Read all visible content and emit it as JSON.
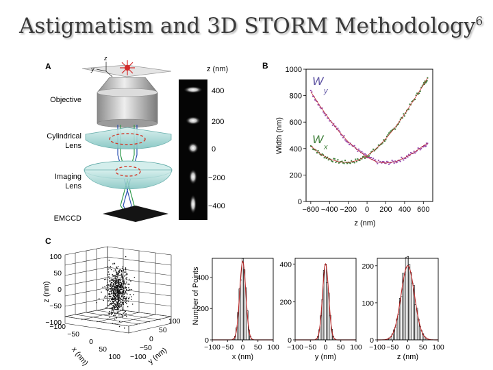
{
  "slide": {
    "title": "Astigmatism and 3D STORM Methodology",
    "title_sup": "6"
  },
  "panelA": {
    "label": "A",
    "axis_z": "z",
    "axis_y": "y",
    "axis_x": "x",
    "labels": [
      "Objective",
      "Cylindrical",
      "Lens",
      "Imaging",
      "Lens",
      "EMCCD"
    ],
    "z_header": "z (nm)",
    "z_ticks": [
      "400",
      "200",
      "0",
      "−200",
      "−400"
    ]
  },
  "panelC_label": "C",
  "chart_data": [
    {
      "type": "scatter",
      "panel": "B",
      "xlabel": "z (nm)",
      "ylabel": "Width (nm)",
      "xlim": [
        -650,
        700
      ],
      "ylim": [
        0,
        1000
      ],
      "xticks": [
        "−600",
        "−400",
        "−200",
        "0",
        "200",
        "400",
        "600"
      ],
      "yticks": [
        "0",
        "200",
        "400",
        "600",
        "800",
        "1000"
      ],
      "series": [
        {
          "name": "Wy",
          "color": "#3f7f3a",
          "z": [
            -600,
            -500,
            -400,
            -300,
            -200,
            -100,
            0,
            100,
            200,
            300,
            400,
            500,
            600,
            650
          ],
          "width": [
            420,
            360,
            320,
            300,
            295,
            310,
            345,
            400,
            475,
            560,
            660,
            770,
            880,
            940
          ]
        },
        {
          "name": "Wx",
          "color": "#9a4fb0",
          "z": [
            -600,
            -500,
            -400,
            -300,
            -200,
            -100,
            0,
            100,
            200,
            300,
            400,
            500,
            600,
            650
          ],
          "width": [
            830,
            720,
            620,
            530,
            450,
            390,
            335,
            300,
            290,
            300,
            330,
            370,
            420,
            440
          ]
        }
      ],
      "legend": [
        "W",
        "y",
        "W",
        "x"
      ]
    },
    {
      "type": "scatter3d",
      "panel": "C",
      "xlabel": "x (nm)",
      "ylabel": "y (nm)",
      "zlabel": "z (nm)",
      "zticks": [
        "100",
        "50",
        "0",
        "−50",
        "−100"
      ],
      "xticks": [
        "−100",
        "−50",
        "0",
        "50",
        "100"
      ],
      "yticks": [
        "−100",
        "−50",
        "0",
        "50",
        "100"
      ]
    },
    {
      "type": "bar",
      "panel": "C-x",
      "xlabel": "x (nm)",
      "ylabel": "Number of Points",
      "xlim": [
        -100,
        100
      ],
      "ylim": [
        0,
        520
      ],
      "xticks": [
        "−100",
        "−50",
        "0",
        "50",
        "100"
      ],
      "yticks": [
        "0",
        "200",
        "400"
      ],
      "sigma": 10,
      "peak": 500
    },
    {
      "type": "bar",
      "panel": "C-y",
      "xlabel": "y (nm)",
      "xlim": [
        -100,
        100
      ],
      "ylim": [
        0,
        430
      ],
      "xticks": [
        "−100",
        "−50",
        "0",
        "50",
        "100"
      ],
      "yticks": [
        "0",
        "200",
        "400"
      ],
      "sigma": 10,
      "peak": 400
    },
    {
      "type": "bar",
      "panel": "C-z",
      "xlabel": "z (nm)",
      "xlim": [
        -100,
        100
      ],
      "ylim": [
        0,
        220
      ],
      "xticks": [
        "−100",
        "−50",
        "0",
        "50",
        "100"
      ],
      "yticks": [
        "0",
        "100",
        "200"
      ],
      "sigma": 22,
      "peak": 200
    }
  ]
}
